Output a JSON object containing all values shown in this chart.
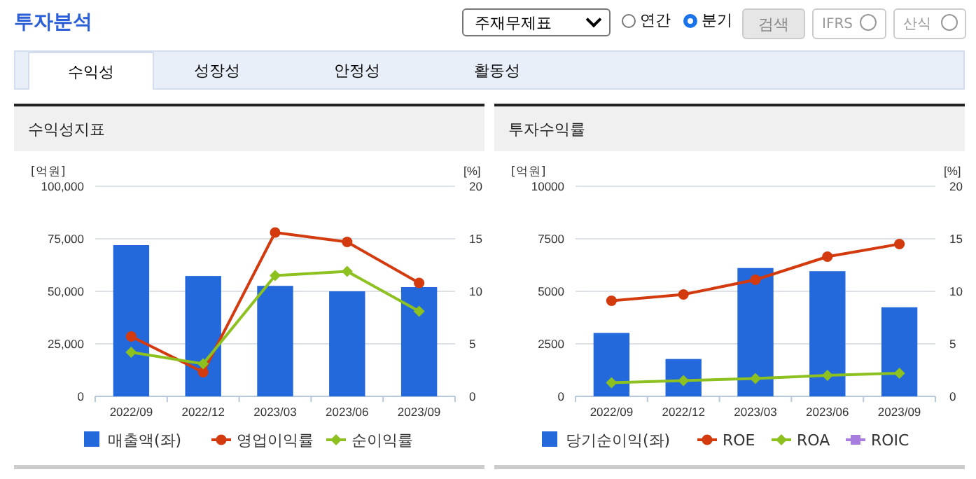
{
  "chart_data": [
    {
      "type": "other",
      "title": "투자분석",
      "annotations": [
        "주재무제표",
        "연간",
        "분기",
        "검색",
        "IFRS",
        "산식",
        "수익성",
        "성장성",
        "안정성",
        "활동성"
      ]
    },
    {
      "type": "bar",
      "title": "수익성지표",
      "ylabel": "[억원]",
      "y2label": "[%]",
      "categories": [
        "2022/09",
        "2022/12",
        "2023/03",
        "2023/06",
        "2023/09"
      ],
      "series": [
        {
          "name": "매출액(좌)",
          "type": "bar",
          "color": "#2369dc",
          "values": [
            72000,
            57300,
            52600,
            50000,
            52000
          ]
        },
        {
          "name": "영업이익률",
          "type": "line",
          "axis": "y2",
          "marker": "circle",
          "color": "#d33b0f",
          "values": [
            5.7,
            2.3,
            15.6,
            14.7,
            10.8
          ]
        },
        {
          "name": "순이익률",
          "type": "line",
          "axis": "y2",
          "marker": "diamond",
          "color": "#8cc11f",
          "values": [
            4.2,
            3.1,
            11.5,
            11.9,
            8.1
          ]
        }
      ],
      "ylim": [
        0,
        100000
      ],
      "yticks": [
        0,
        {
          "value": 25000,
          "label": "25,000"
        },
        {
          "value": 50000,
          "label": "50,000"
        },
        {
          "value": 75000,
          "label": "75,000"
        },
        {
          "value": 100000,
          "label": "100,000"
        }
      ],
      "y2lim": [
        0,
        20
      ],
      "y2ticks": [
        0,
        5,
        10,
        15,
        20
      ],
      "grid": "y",
      "legend": "bottom"
    },
    {
      "type": "bar",
      "title": "투자수익률",
      "ylabel": "[억원]",
      "y2label": "[%]",
      "categories": [
        "2022/09",
        "2022/12",
        "2023/03",
        "2023/06",
        "2023/09"
      ],
      "series": [
        {
          "name": "당기순이익(좌)",
          "type": "bar",
          "color": "#2369dc",
          "values": [
            3020,
            1780,
            6110,
            5960,
            4240
          ]
        },
        {
          "name": "ROE",
          "type": "line",
          "axis": "y2",
          "marker": "circle",
          "color": "#d33b0f",
          "values": [
            9.1,
            9.7,
            11.1,
            13.3,
            14.5
          ]
        },
        {
          "name": "ROA",
          "type": "line",
          "axis": "y2",
          "marker": "diamond",
          "color": "#8cc11f",
          "values": [
            1.3,
            1.5,
            1.7,
            2.0,
            2.2
          ]
        },
        {
          "name": "ROIC",
          "type": "line",
          "axis": "y2",
          "marker": "square",
          "color": "#a77ee0",
          "values": [
            null,
            null,
            null,
            null,
            null
          ]
        }
      ],
      "ylim": [
        0,
        10000
      ],
      "yticks": [
        0,
        2500,
        5000,
        7500,
        10000
      ],
      "y2lim": [
        0,
        20
      ],
      "y2ticks": [
        0,
        5,
        10,
        15,
        20
      ],
      "grid": "y",
      "legend": "bottom"
    }
  ]
}
